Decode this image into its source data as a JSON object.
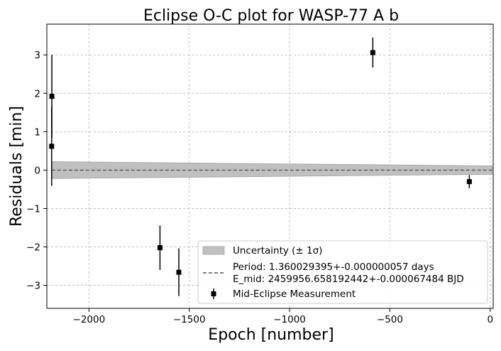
{
  "chart_data": {
    "type": "scatter",
    "title": "Eclipse O-C plot for WASP-77 A b",
    "xlabel": "Epoch [number]",
    "ylabel": "Residuals [min]",
    "xlim": [
      -2210,
      15
    ],
    "ylim": [
      -3.6,
      3.8
    ],
    "xticks": [
      -2000,
      -1500,
      -1000,
      -500,
      0
    ],
    "xtick_labels": [
      "−2000",
      "−1500",
      "−1000",
      "−500",
      "0"
    ],
    "yticks": [
      -3,
      -2,
      -1,
      0,
      1,
      2,
      3
    ],
    "ytick_labels": [
      "−3",
      "−2",
      "−1",
      "0",
      "1",
      "2",
      "3"
    ],
    "grid": true,
    "legend_position": "lower-right",
    "series": [
      {
        "name": "Mid-Eclipse Measurement",
        "kind": "errorbar",
        "color": "#000000",
        "points": [
          {
            "x": -2185,
            "y": 1.92,
            "err": 1.08
          },
          {
            "x": -2186,
            "y": 0.62,
            "err": 1.03
          },
          {
            "x": -1646,
            "y": -2.02,
            "err": 0.58
          },
          {
            "x": -1552,
            "y": -2.66,
            "err": 0.62
          },
          {
            "x": -585,
            "y": 3.06,
            "err": 0.39
          },
          {
            "x": -104,
            "y": -0.3,
            "err": 0.17
          }
        ]
      },
      {
        "name": "Uncertainty (± 1σ)",
        "kind": "band",
        "color": "#c0c0c0",
        "x": [
          -2186,
          10
        ],
        "upper": [
          0.22,
          0.11
        ],
        "lower": [
          -0.22,
          -0.11
        ]
      },
      {
        "name": "Period: 1.360029395+-0.000000057 days\nE_mid: 2459956.658192442+-0.000067484 BJD",
        "kind": "line",
        "style": "dashed",
        "color": "#555555",
        "x": [
          -2186,
          10
        ],
        "y": [
          0,
          0
        ]
      }
    ],
    "legend": [
      {
        "label": "Uncertainty (± 1σ)"
      },
      {
        "label_line1": "Period: 1.360029395+-0.000000057 days",
        "label_line2": "E_mid: 2459956.658192442+-0.000067484 BJD"
      },
      {
        "label": "Mid-Eclipse Measurement"
      }
    ]
  }
}
